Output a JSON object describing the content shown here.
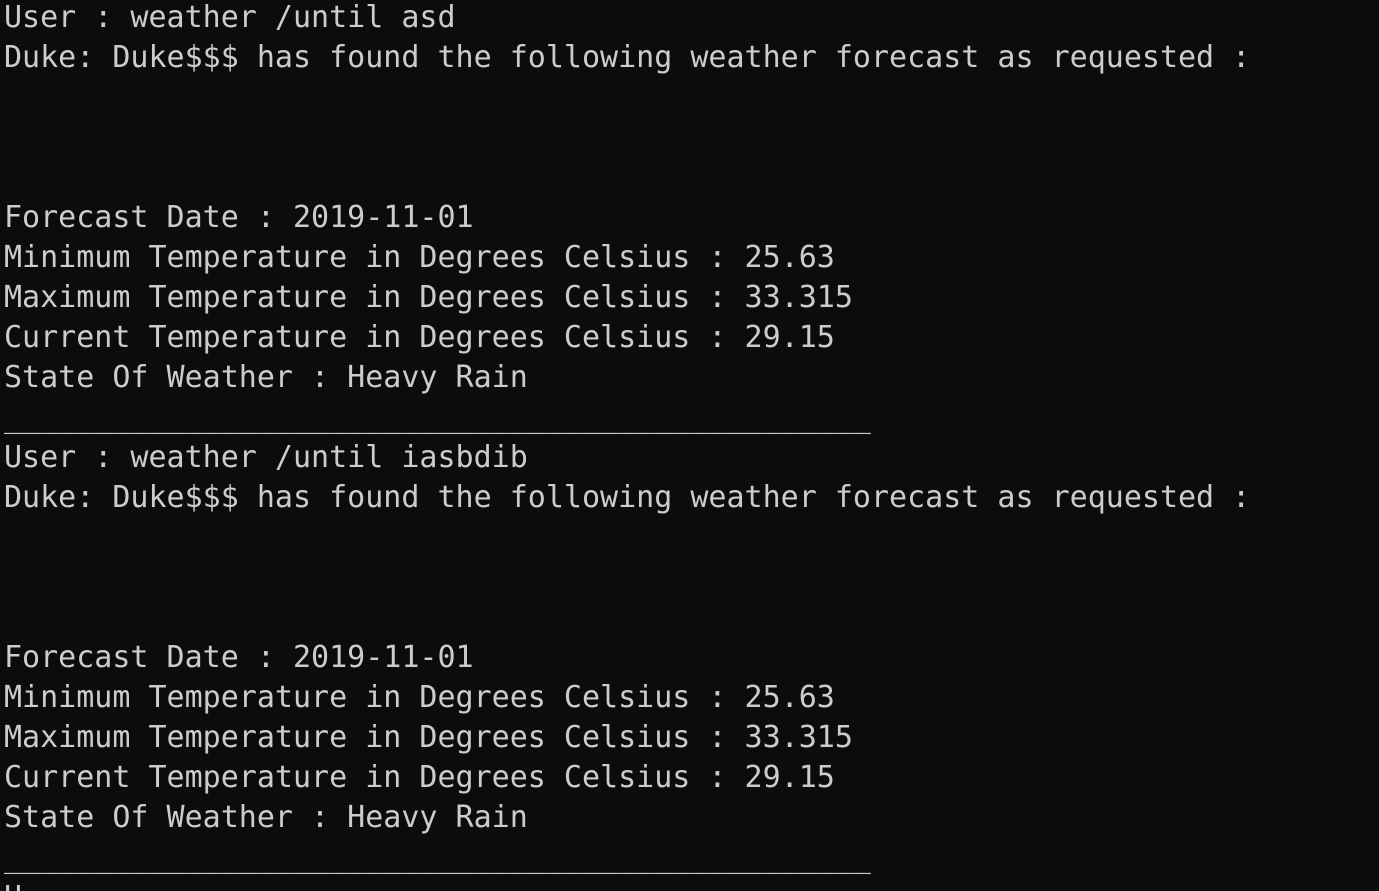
{
  "colors": {
    "background": "#0c0c0c",
    "foreground": "#cccccc"
  },
  "lines": [
    "User : weather /until asd",
    "Duke: Duke$$$ has found the following weather forecast as requested :",
    "",
    "",
    "",
    "Forecast Date : 2019-11-01",
    "Minimum Temperature in Degrees Celsius : 25.63",
    "Maximum Temperature in Degrees Celsius : 33.315",
    "Current Temperature in Degrees Celsius : 29.15",
    "State Of Weather : Heavy Rain",
    "",
    "________________________________________________",
    "User : weather /until iasbdib",
    "Duke: Duke$$$ has found the following weather forecast as requested :",
    "",
    "",
    "",
    "Forecast Date : 2019-11-01",
    "Minimum Temperature in Degrees Celsius : 25.63",
    "Maximum Temperature in Degrees Celsius : 33.315",
    "Current Temperature in Degrees Celsius : 29.15",
    "State Of Weather : Heavy Rain",
    "",
    "________________________________________________",
    "U"
  ]
}
